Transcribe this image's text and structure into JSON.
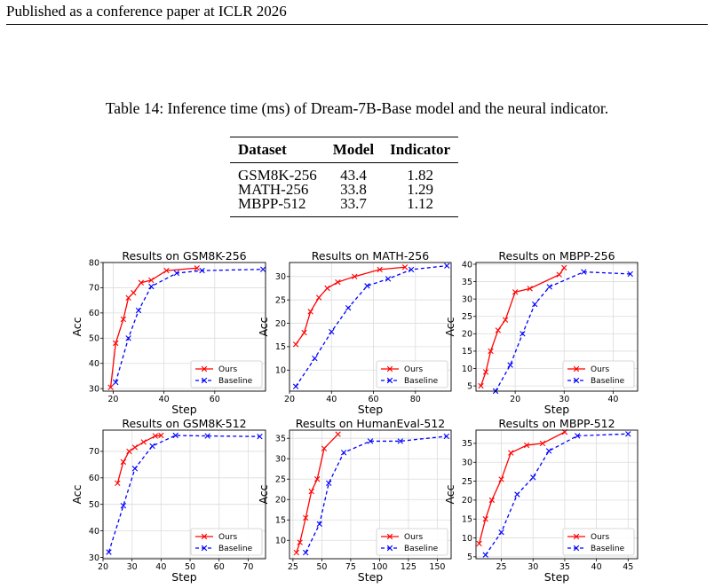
{
  "header": {
    "text": "Published as a conference paper at ICLR 2026"
  },
  "caption": "Table 14: Inference time (ms) of Dream-7B-Base model and the neural indicator.",
  "table": {
    "headers": [
      "Dataset",
      "Model",
      "Indicator"
    ],
    "rows": [
      [
        "GSM8K-256",
        "43.4",
        "1.82"
      ],
      [
        "MATH-256",
        "33.8",
        "1.29"
      ],
      [
        "MBPP-512",
        "33.7",
        "1.12"
      ]
    ]
  },
  "colors": {
    "ours": "#ff0000",
    "baseline": "#0000ff"
  },
  "chart_data": [
    {
      "type": "line",
      "title": "Results on GSM8K-256",
      "xlabel": "Step",
      "ylabel": "Acc",
      "xlim": [
        16,
        80
      ],
      "ylim": [
        29,
        80
      ],
      "xticks": [
        20,
        40,
        60
      ],
      "yticks": [
        30,
        40,
        50,
        60,
        70,
        80
      ],
      "grid": true,
      "legend": "lower-right",
      "series": [
        {
          "name": "Ours",
          "x": [
            19,
            21,
            24,
            26,
            28,
            31,
            35,
            41,
            53
          ],
          "y": [
            30.5,
            48,
            57.5,
            66,
            68,
            72,
            73,
            76.8,
            77.8
          ]
        },
        {
          "name": "Baseline",
          "x": [
            21,
            26,
            30,
            35,
            45,
            55,
            79
          ],
          "y": [
            32.5,
            50,
            61,
            70.5,
            75.8,
            76.8,
            77.3
          ]
        }
      ]
    },
    {
      "type": "line",
      "title": "Results on MATH-256",
      "xlabel": "Step",
      "ylabel": "Acc",
      "xlim": [
        20,
        97
      ],
      "ylim": [
        5.5,
        33
      ],
      "xticks": [
        20,
        40,
        60,
        80
      ],
      "yticks": [
        10,
        15,
        20,
        25,
        30
      ],
      "grid": true,
      "legend": "lower-right",
      "series": [
        {
          "name": "Ours",
          "x": [
            23,
            27,
            30,
            34,
            38,
            43,
            51,
            63,
            75
          ],
          "y": [
            15.5,
            18,
            22.5,
            25.5,
            27.5,
            28.8,
            30,
            31.5,
            32
          ]
        },
        {
          "name": "Baseline",
          "x": [
            23,
            32,
            40,
            48,
            57,
            67,
            78,
            95
          ],
          "y": [
            6.5,
            12.5,
            18.2,
            23.3,
            28,
            29.5,
            31.5,
            32.3
          ]
        }
      ]
    },
    {
      "type": "line",
      "title": "Results on MBPP-256",
      "xlabel": "Step",
      "ylabel": "Acc",
      "xlim": [
        12,
        45
      ],
      "ylim": [
        3.5,
        40.5
      ],
      "xticks": [
        20,
        30,
        40
      ],
      "yticks": [
        5,
        10,
        15,
        20,
        25,
        30,
        35,
        40
      ],
      "grid": true,
      "legend": "lower-right",
      "series": [
        {
          "name": "Ours",
          "x": [
            13,
            14,
            15,
            16.5,
            18,
            20,
            23,
            29,
            30
          ],
          "y": [
            5,
            9,
            15,
            21,
            24,
            32,
            33,
            37,
            39
          ]
        },
        {
          "name": "Baseline",
          "x": [
            16,
            19,
            21.5,
            24,
            27,
            34,
            43.5
          ],
          "y": [
            3.5,
            11,
            20,
            28.5,
            33.5,
            37.8,
            37.2
          ]
        }
      ]
    },
    {
      "type": "line",
      "title": "Results on GSM8K-512",
      "xlabel": "Step",
      "ylabel": "Acc",
      "xlim": [
        20,
        76
      ],
      "ylim": [
        29.5,
        78
      ],
      "xticks": [
        20,
        30,
        40,
        50,
        60,
        70
      ],
      "yticks": [
        30,
        40,
        50,
        60,
        70
      ],
      "grid": true,
      "legend": "lower-right",
      "series": [
        {
          "name": "Ours",
          "x": [
            25,
            27,
            29,
            31,
            34,
            38,
            40
          ],
          "y": [
            58,
            66,
            70,
            71.5,
            73.5,
            75.8,
            76
          ]
        },
        {
          "name": "Baseline",
          "x": [
            22,
            27,
            31,
            37,
            45,
            56,
            74
          ],
          "y": [
            32,
            49.5,
            63.5,
            72,
            76,
            75.8,
            75.6
          ]
        }
      ]
    },
    {
      "type": "line",
      "title": "Results on HumanEval-512",
      "xlabel": "Step",
      "ylabel": "Acc",
      "xlim": [
        22,
        162
      ],
      "ylim": [
        5.5,
        37
      ],
      "xticks": [
        25,
        50,
        75,
        100,
        125,
        150
      ],
      "yticks": [
        10,
        15,
        20,
        25,
        30,
        35
      ],
      "grid": true,
      "legend": "lower-right",
      "series": [
        {
          "name": "Ours",
          "x": [
            28,
            31,
            36,
            41,
            46,
            52,
            64
          ],
          "y": [
            7,
            9.5,
            15.5,
            22,
            25,
            32.5,
            36
          ]
        },
        {
          "name": "Baseline",
          "x": [
            36,
            48,
            56,
            69,
            92,
            118,
            158
          ],
          "y": [
            7,
            14,
            24,
            31.5,
            34.3,
            34.3,
            35.5
          ]
        }
      ]
    },
    {
      "type": "line",
      "title": "Results on MBPP-512",
      "xlabel": "Step",
      "ylabel": "Acc",
      "xlim": [
        21,
        46.5
      ],
      "ylim": [
        4.5,
        38.5
      ],
      "xticks": [
        25,
        30,
        35,
        40,
        45
      ],
      "yticks": [
        5,
        10,
        15,
        20,
        25,
        30,
        35
      ],
      "grid": true,
      "legend": "lower-right",
      "series": [
        {
          "name": "Ours",
          "x": [
            21.5,
            22.5,
            23.5,
            25,
            26.5,
            29,
            31.5,
            35
          ],
          "y": [
            8.5,
            15,
            20,
            25.5,
            32.5,
            34.5,
            35,
            38
          ]
        },
        {
          "name": "Baseline",
          "x": [
            22.5,
            25,
            27.5,
            30,
            32.5,
            37,
            45
          ],
          "y": [
            5.5,
            11.5,
            21.5,
            26,
            33,
            37,
            37.5
          ]
        }
      ]
    }
  ]
}
